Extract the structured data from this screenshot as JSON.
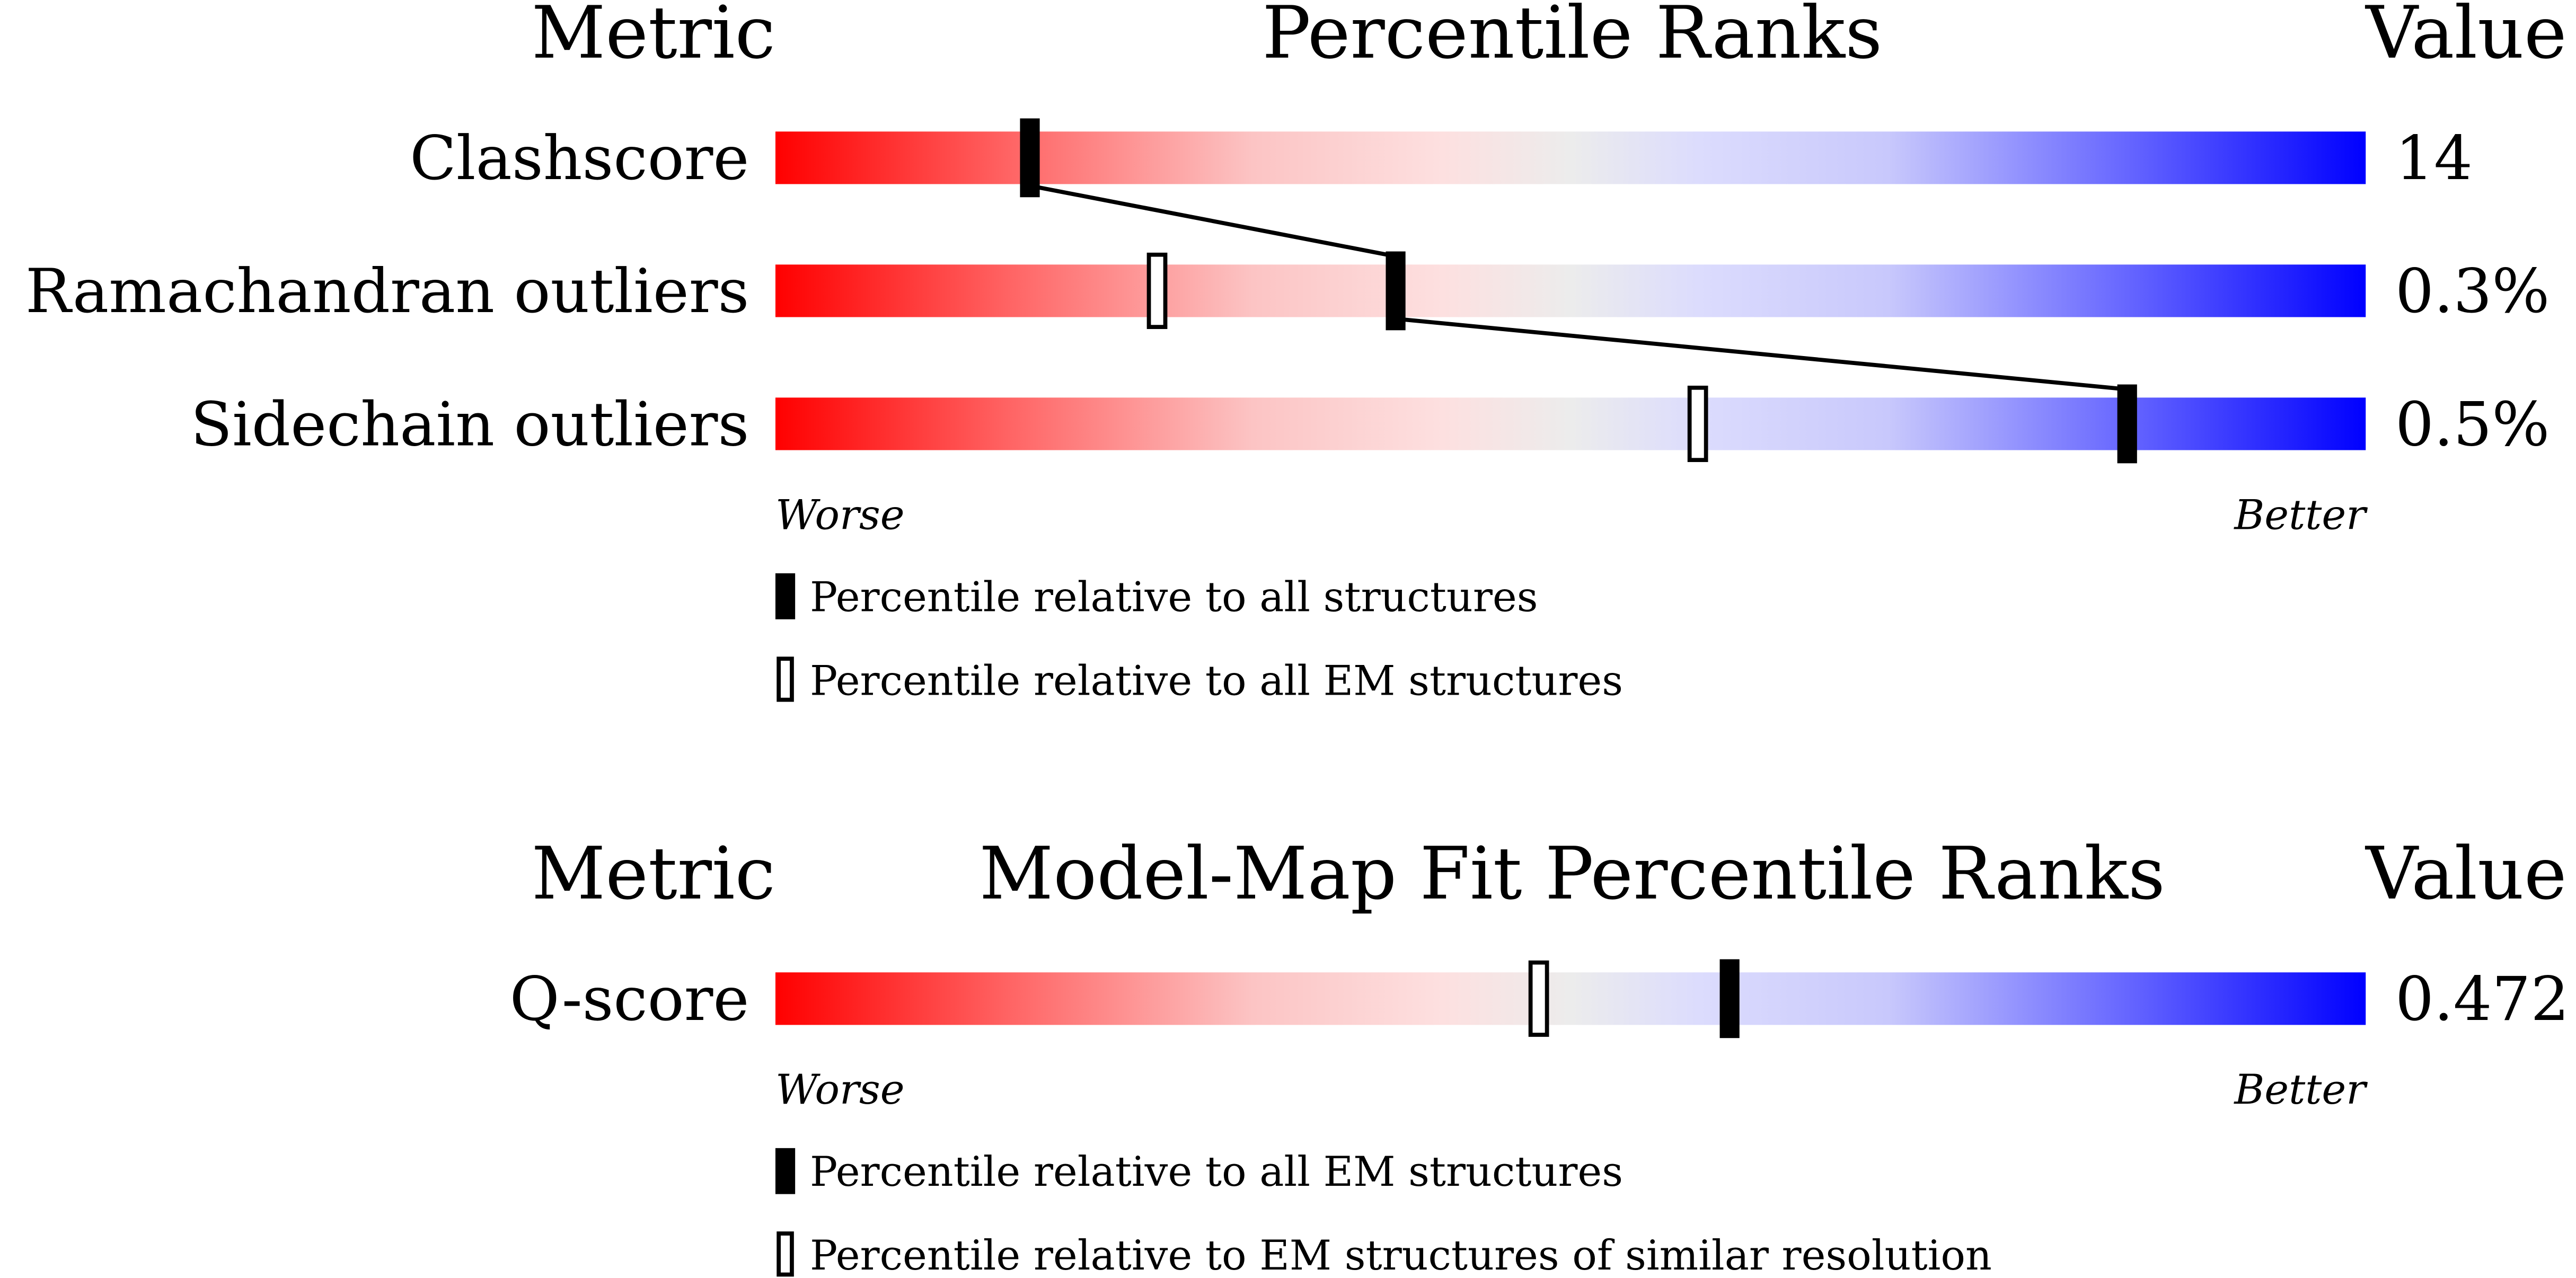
{
  "xlim": [
    0,
    100
  ],
  "panels": [
    {
      "header": {
        "metric": "Metric",
        "title": "Percentile Ranks",
        "value": "Value"
      },
      "rows": [
        {
          "metric": "Clashscore",
          "value": "14",
          "filled_percentile": 16
        },
        {
          "metric": "Ramachandran outliers",
          "value": "0.3%",
          "filled_percentile": 39,
          "open_percentile": 24
        },
        {
          "metric": "Sidechain outliers",
          "value": "0.5%",
          "filled_percentile": 85,
          "open_percentile": 58
        }
      ],
      "scale": {
        "worse": "Worse",
        "better": "Better"
      },
      "legend": {
        "filled": "Percentile relative to all structures",
        "open": "Percentile relative to all EM structures"
      }
    },
    {
      "header": {
        "metric": "Metric",
        "title": "Model-Map Fit Percentile Ranks",
        "value": "Value"
      },
      "rows": [
        {
          "metric": "Q-score",
          "value": "0.472",
          "filled_percentile": 60,
          "open_percentile": 48
        }
      ],
      "scale": {
        "worse": "Worse",
        "better": "Better"
      },
      "legend": {
        "filled": "Percentile relative to all EM structures",
        "open": "Percentile relative to EM structures of similar resolution"
      }
    }
  ]
}
